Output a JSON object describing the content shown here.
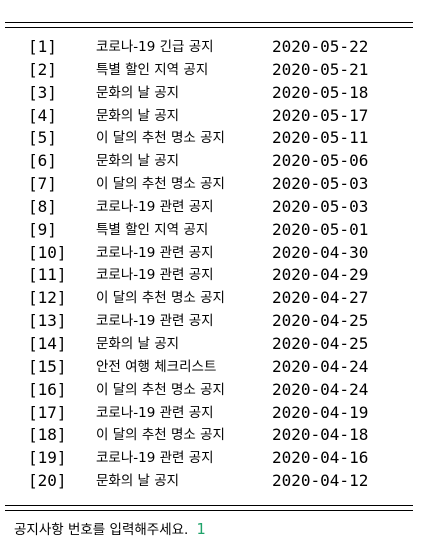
{
  "notices": [
    {
      "num": "[1]",
      "title": "코로나-19 긴급 공지",
      "date": "2020-05-22"
    },
    {
      "num": "[2]",
      "title": "특별 할인 지역 공지",
      "date": "2020-05-21"
    },
    {
      "num": "[3]",
      "title": "문화의 날 공지",
      "date": "2020-05-18"
    },
    {
      "num": "[4]",
      "title": "문화의 날 공지",
      "date": "2020-05-17"
    },
    {
      "num": "[5]",
      "title": "이 달의 추천 명소 공지",
      "date": "2020-05-11"
    },
    {
      "num": "[6]",
      "title": "문화의 날 공지",
      "date": "2020-05-06"
    },
    {
      "num": "[7]",
      "title": "이 달의 추천 명소 공지",
      "date": "2020-05-03"
    },
    {
      "num": "[8]",
      "title": "코로나-19 관련 공지",
      "date": "2020-05-03"
    },
    {
      "num": "[9]",
      "title": "특별 할인 지역 공지",
      "date": "2020-05-01"
    },
    {
      "num": "[10]",
      "title": "코로나-19 관련 공지",
      "date": "2020-04-30"
    },
    {
      "num": "[11]",
      "title": "코로나-19 관련 공지",
      "date": "2020-04-29"
    },
    {
      "num": "[12]",
      "title": "이 달의 추천 명소 공지",
      "date": "2020-04-27"
    },
    {
      "num": "[13]",
      "title": "코로나-19 관련 공지",
      "date": "2020-04-25"
    },
    {
      "num": "[14]",
      "title": "문화의 날 공지",
      "date": "2020-04-25"
    },
    {
      "num": "[15]",
      "title": "안전 여행 체크리스트",
      "date": "2020-04-24"
    },
    {
      "num": "[16]",
      "title": "이 달의 추천 명소 공지",
      "date": "2020-04-24"
    },
    {
      "num": "[17]",
      "title": "코로나-19 관련 공지",
      "date": "2020-04-19"
    },
    {
      "num": "[18]",
      "title": "이 달의 추천 명소 공지",
      "date": "2020-04-18"
    },
    {
      "num": "[19]",
      "title": "코로나-19 관련 공지",
      "date": "2020-04-16"
    },
    {
      "num": "[20]",
      "title": "문화의 날 공지",
      "date": "2020-04-12"
    }
  ],
  "prompt": {
    "text": "공지사항 번호를 입력해주세요.",
    "input_value": "1"
  },
  "colors": {
    "background": "#ffffff",
    "text": "#000000",
    "input": "#1fa36a"
  }
}
